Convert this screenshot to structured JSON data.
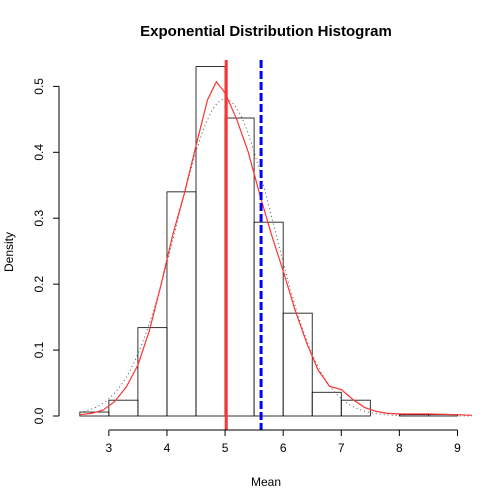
{
  "chart_data": {
    "type": "bar",
    "title": "Exponential Distribution Histogram",
    "xlabel": "Mean",
    "ylabel": "Density",
    "xlim": [
      2.4,
      9.25
    ],
    "ylim": [
      0,
      0.54
    ],
    "xticks": [
      3,
      4,
      5,
      6,
      7,
      8,
      9
    ],
    "yticks": [
      0.0,
      0.1,
      0.2,
      0.3,
      0.4,
      0.5
    ],
    "ytick_labels": [
      "0.0",
      "0.1",
      "0.2",
      "0.3",
      "0.4",
      "0.5"
    ],
    "bins": [
      {
        "x0": 2.5,
        "x1": 3.0,
        "density": 0.006
      },
      {
        "x0": 3.0,
        "x1": 3.5,
        "density": 0.024
      },
      {
        "x0": 3.5,
        "x1": 4.0,
        "density": 0.134
      },
      {
        "x0": 4.0,
        "x1": 4.5,
        "density": 0.34
      },
      {
        "x0": 4.5,
        "x1": 5.0,
        "density": 0.53
      },
      {
        "x0": 5.0,
        "x1": 5.5,
        "density": 0.452
      },
      {
        "x0": 5.5,
        "x1": 6.0,
        "density": 0.294
      },
      {
        "x0": 6.0,
        "x1": 6.5,
        "density": 0.156
      },
      {
        "x0": 6.5,
        "x1": 7.0,
        "density": 0.036
      },
      {
        "x0": 7.0,
        "x1": 7.5,
        "density": 0.024
      },
      {
        "x0": 7.5,
        "x1": 8.0,
        "density": 0.0
      },
      {
        "x0": 8.0,
        "x1": 8.5,
        "density": 0.002
      },
      {
        "x0": 8.5,
        "x1": 9.0,
        "density": 0.002
      }
    ],
    "density_curve": {
      "color": "#ff3333",
      "x": [
        2.5,
        2.7,
        2.9,
        3.1,
        3.3,
        3.5,
        3.7,
        3.9,
        4.1,
        4.3,
        4.5,
        4.7,
        4.85,
        5.0,
        5.2,
        5.4,
        5.6,
        5.8,
        6.0,
        6.2,
        6.4,
        6.6,
        6.8,
        7.0,
        7.2,
        7.4,
        7.6,
        7.8,
        8.0,
        8.5,
        9.0,
        9.25
      ],
      "y": [
        0.002,
        0.004,
        0.009,
        0.022,
        0.044,
        0.077,
        0.13,
        0.2,
        0.275,
        0.338,
        0.41,
        0.48,
        0.507,
        0.49,
        0.45,
        0.4,
        0.335,
        0.275,
        0.22,
        0.162,
        0.112,
        0.07,
        0.045,
        0.04,
        0.025,
        0.013,
        0.007,
        0.004,
        0.003,
        0.003,
        0.002,
        0.001
      ]
    },
    "normal_curve": {
      "style": "dotted",
      "color": "#555555",
      "mean": 5.0,
      "sd": 0.83
    },
    "vlines": [
      {
        "x": 5.02,
        "color": "#ff3333",
        "style": "solid"
      },
      {
        "x": 5.62,
        "color": "#0000ff",
        "style": "dashed"
      }
    ]
  }
}
